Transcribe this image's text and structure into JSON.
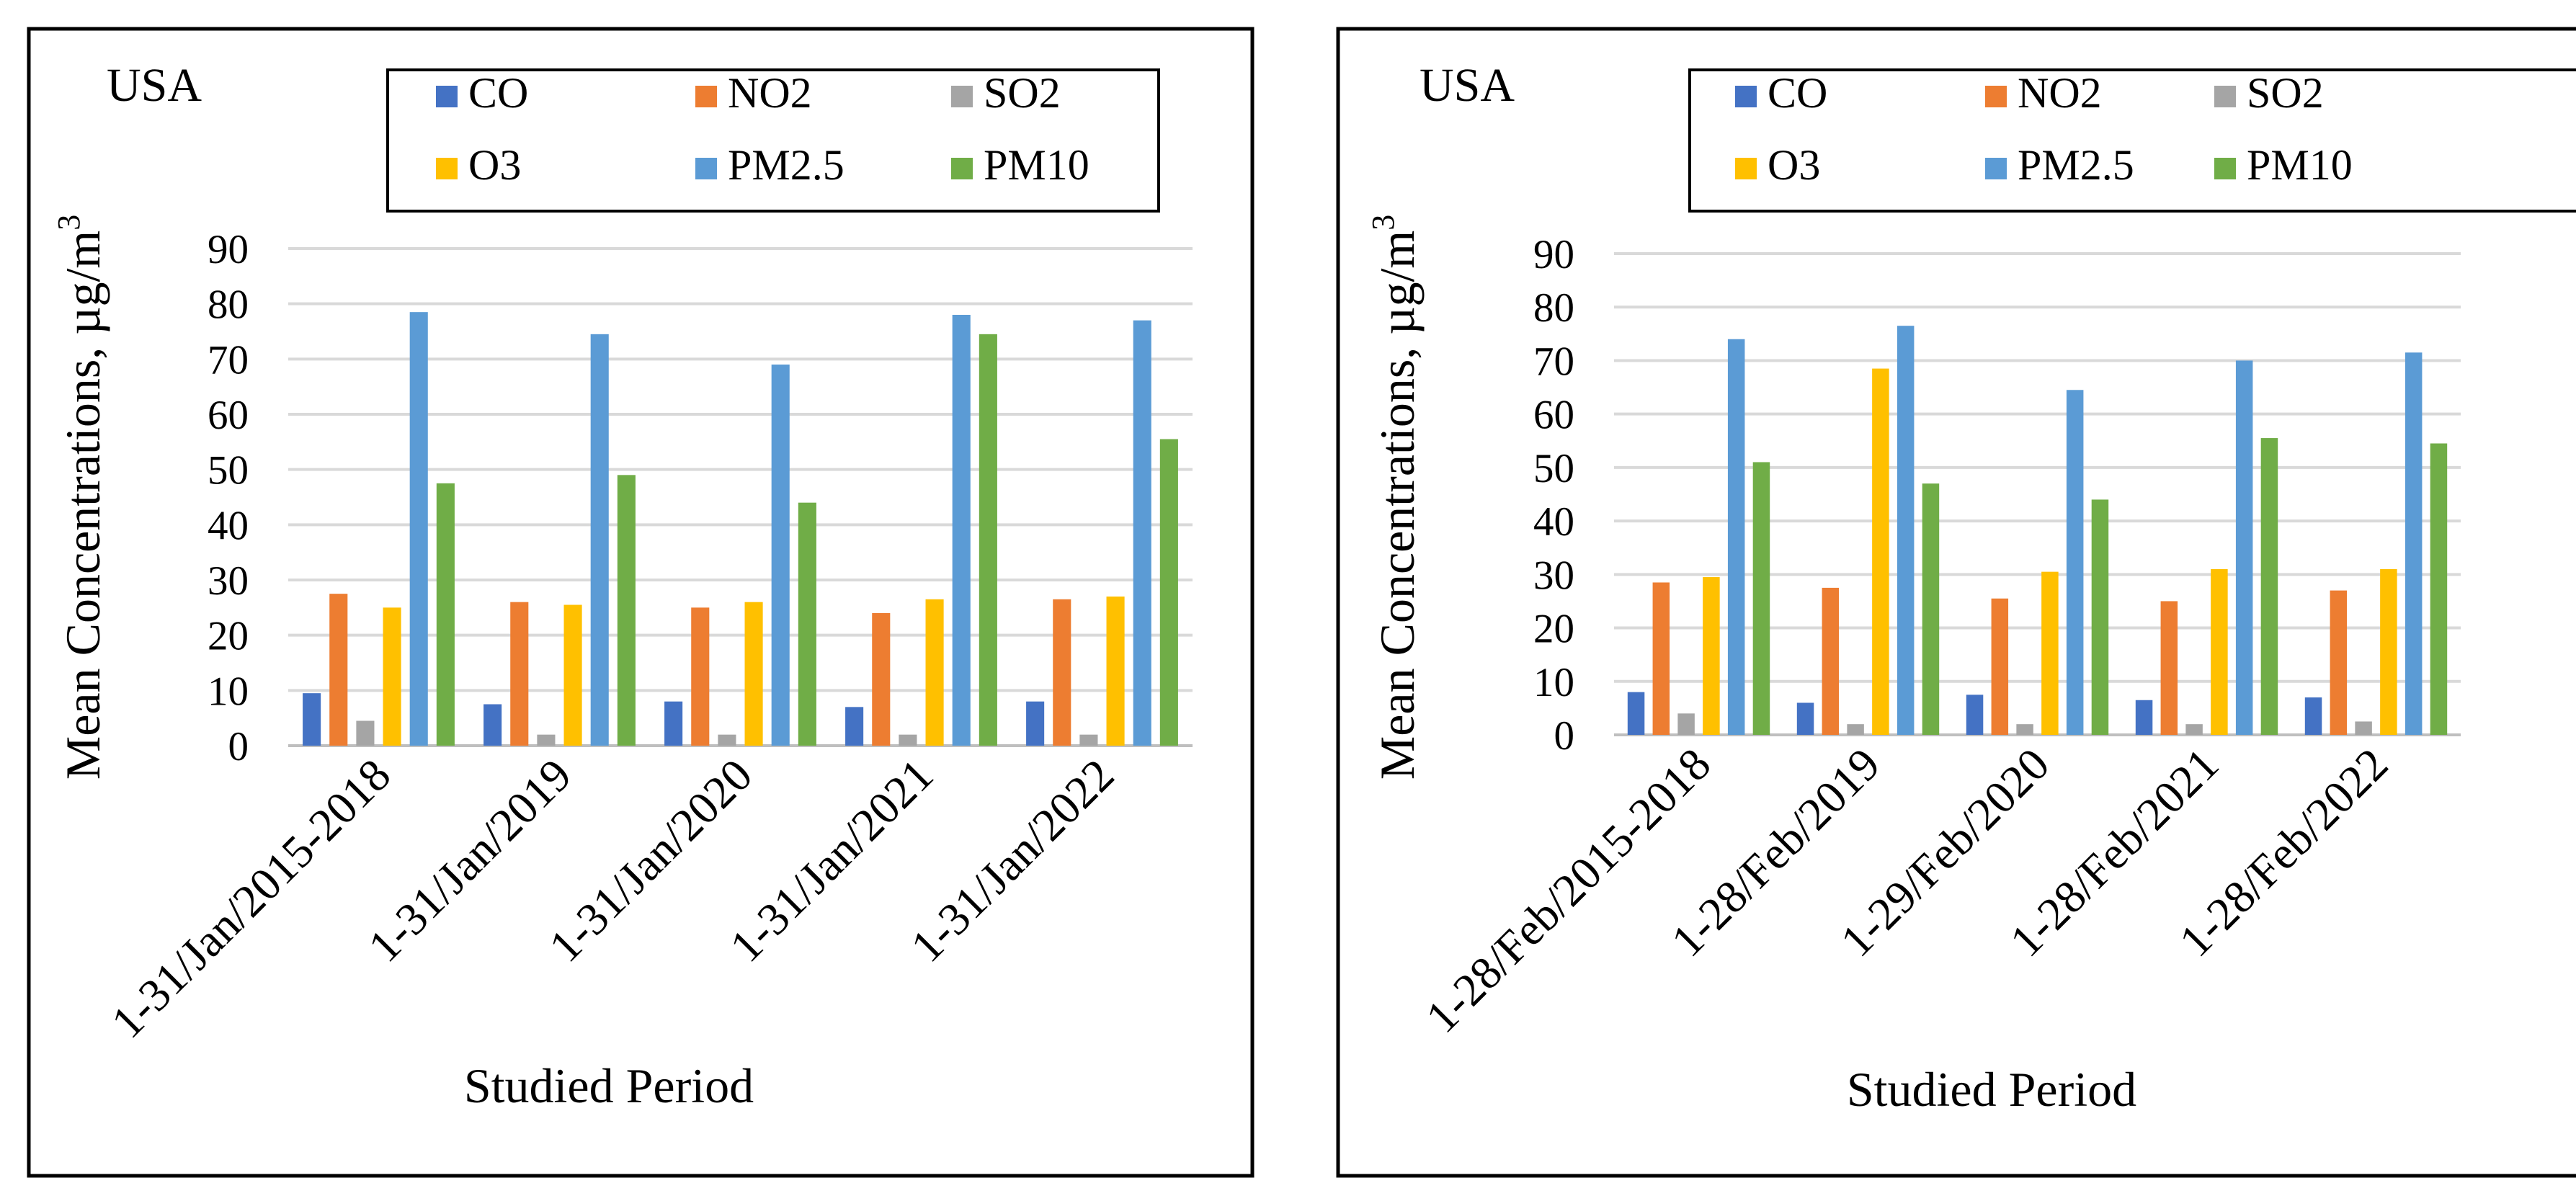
{
  "colors": {
    "CO": "#4472C4",
    "NO2": "#ED7D31",
    "SO2": "#A5A5A5",
    "O3": "#FFC000",
    "PM2.5": "#5B9BD5",
    "PM10": "#70AD47",
    "grid": "#D9D9D9"
  },
  "chart_data": [
    {
      "type": "bar",
      "title": "USA",
      "xlabel": "Studied Period",
      "ylabel": "Mean Concentrations, µg/m",
      "ylabel_sup": "3",
      "ylim": [
        0,
        90
      ],
      "yticks": [
        "0",
        "10",
        "20",
        "30",
        "40",
        "50",
        "60",
        "70",
        "80",
        "90"
      ],
      "legend_position": "top",
      "categories": [
        "1-31/Jan/2015-2018",
        "1-31/Jan/2019",
        "1-31/Jan/2020",
        "1-31/Jan/2021",
        "1-31/Jan/2022"
      ],
      "series": [
        {
          "name": "CO",
          "values": [
            9.5,
            7.5,
            8,
            7,
            8
          ]
        },
        {
          "name": "NO2",
          "values": [
            27.5,
            26,
            25,
            24,
            26.5
          ]
        },
        {
          "name": "SO2",
          "values": [
            4.5,
            2,
            2,
            2,
            2
          ]
        },
        {
          "name": "O3",
          "values": [
            25,
            25.5,
            26,
            26.5,
            27
          ]
        },
        {
          "name": "PM2.5",
          "values": [
            78.5,
            74.5,
            69,
            78,
            77
          ]
        },
        {
          "name": "PM10",
          "values": [
            47.5,
            49,
            44,
            74.5,
            55.5
          ]
        }
      ]
    },
    {
      "type": "bar",
      "title": "USA",
      "xlabel": "Studied Period",
      "ylabel": "Mean Concentrations, µg/m",
      "ylabel_sup": "3",
      "ylim": [
        0,
        90
      ],
      "yticks": [
        "0",
        "10",
        "20",
        "30",
        "40",
        "50",
        "60",
        "70",
        "80",
        "90"
      ],
      "legend_position": "top",
      "categories": [
        "1-28/Feb/2015-2018",
        "1-28/Feb/2019",
        "1-29/Feb/2020",
        "1-28/Feb/2021",
        "1-28/Feb/2022"
      ],
      "series": [
        {
          "name": "CO",
          "values": [
            8,
            6,
            7.5,
            6.5,
            7
          ]
        },
        {
          "name": "NO2",
          "values": [
            28.5,
            27.5,
            25.5,
            25,
            27
          ]
        },
        {
          "name": "SO2",
          "values": [
            4,
            2,
            2,
            2,
            2.5
          ]
        },
        {
          "name": "O3",
          "values": [
            29.5,
            68.5,
            30.5,
            31,
            31
          ]
        },
        {
          "name": "PM2.5",
          "values": [
            74,
            76.5,
            64.5,
            70,
            71.5
          ]
        },
        {
          "name": "PM10",
          "values": [
            51,
            47,
            44,
            55.5,
            54.5
          ]
        }
      ]
    }
  ]
}
